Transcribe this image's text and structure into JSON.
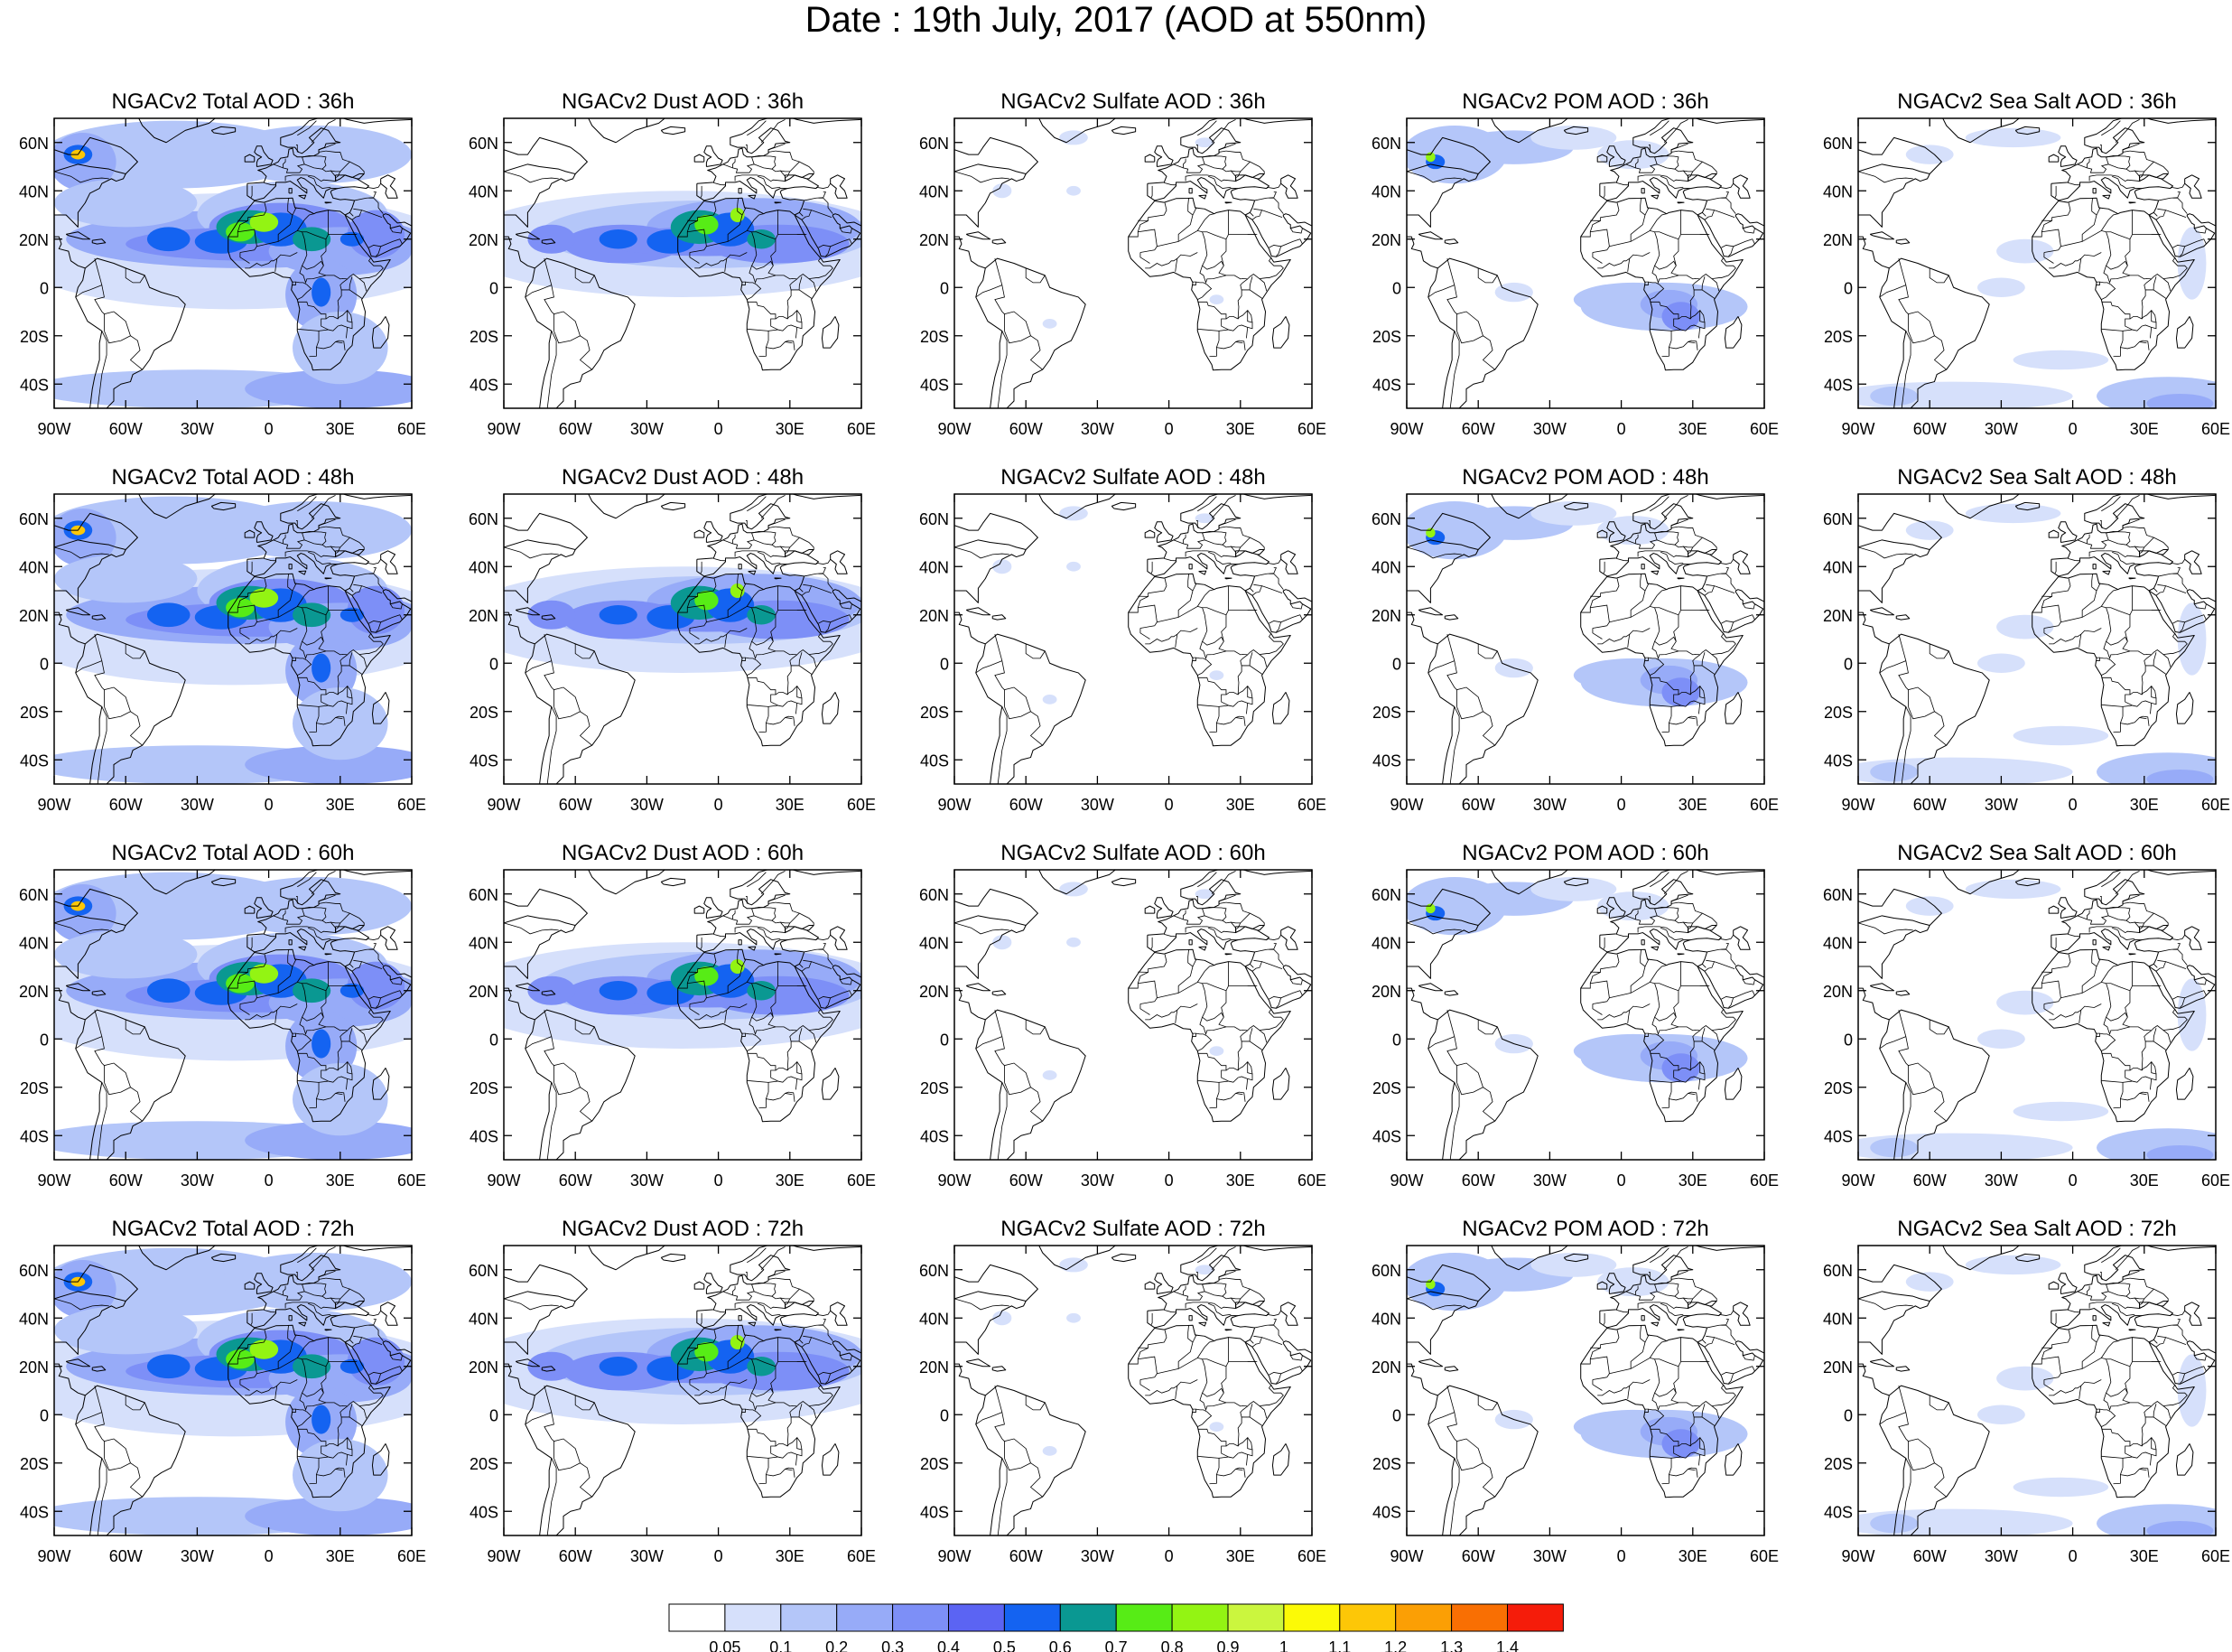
{
  "title": "Date : 19th July, 2017 (AOD at 550nm)",
  "rows": [
    [
      "NGACv2 Total AOD : 36h",
      "NGACv2 Dust AOD : 36h",
      "NGACv2 Sulfate AOD : 36h",
      "NGACv2 POM AOD : 36h",
      "NGACv2 Sea Salt AOD : 36h"
    ],
    [
      "NGACv2 Total AOD : 48h",
      "NGACv2 Dust AOD : 48h",
      "NGACv2 Sulfate AOD : 48h",
      "NGACv2 POM AOD : 48h",
      "NGACv2 Sea Salt AOD : 48h"
    ],
    [
      "NGACv2 Total AOD : 60h",
      "NGACv2 Dust AOD : 60h",
      "NGACv2 Sulfate AOD : 60h",
      "NGACv2 POM AOD : 60h",
      "NGACv2 Sea Salt AOD : 60h"
    ],
    [
      "NGACv2 Total AOD : 72h",
      "NGACv2 Dust AOD : 72h",
      "NGACv2 Sulfate AOD : 72h",
      "NGACv2 POM AOD : 72h",
      "NGACv2 Sea Salt  AOD : 72h"
    ]
  ],
  "lat_ticks": [
    "60N",
    "40N",
    "20N",
    "0",
    "20S",
    "40S"
  ],
  "lon_ticks": [
    "90W",
    "60W",
    "30W",
    "0",
    "30E",
    "60E"
  ],
  "colorbar": {
    "colors": [
      "#ffffff",
      "#d6e0fb",
      "#b4c6f9",
      "#97abf8",
      "#7d8ff7",
      "#5b64f3",
      "#1463f1",
      "#0a9892",
      "#57ec16",
      "#93f413",
      "#cbf63e",
      "#fcfa06",
      "#fdc707",
      "#fb9f05",
      "#f96f03",
      "#f51c0a"
    ],
    "labels": [
      "0.05",
      "0.1",
      "0.2",
      "0.3",
      "0.4",
      "0.5",
      "0.6",
      "0.7",
      "0.8",
      "0.9",
      "1",
      "1.1",
      "1.2",
      "1.3",
      "1.4"
    ]
  },
  "map_region": {
    "lon": [
      -90,
      60
    ],
    "lat": [
      -50,
      70
    ]
  }
}
